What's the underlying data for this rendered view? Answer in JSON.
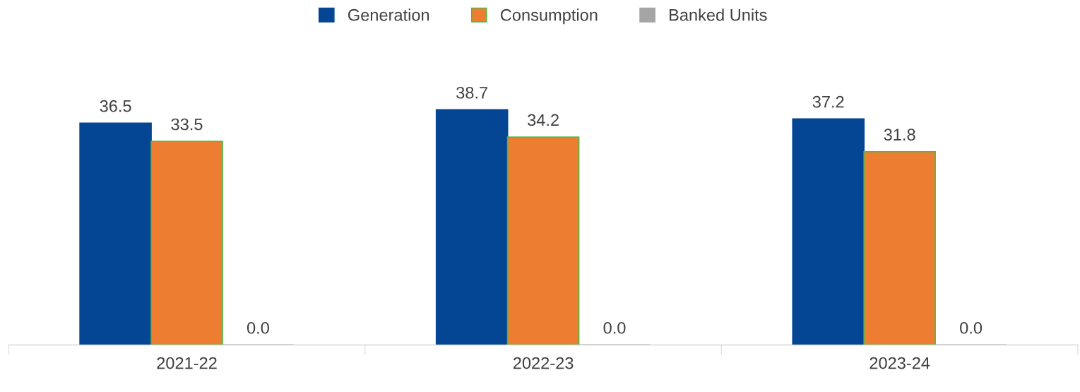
{
  "chart_data": {
    "type": "bar",
    "categories": [
      "2021-22",
      "2022-23",
      "2023-24"
    ],
    "series": [
      {
        "name": "Generation",
        "color": "#044694",
        "values": [
          36.5,
          38.7,
          37.2
        ],
        "value_labels": [
          "36.5",
          "38.7",
          "37.2"
        ]
      },
      {
        "name": "Consumption",
        "color": "#ed7d31",
        "values": [
          33.5,
          34.2,
          31.8
        ],
        "value_labels": [
          "33.5",
          "34.2",
          "31.8"
        ]
      },
      {
        "name": "Banked Units",
        "color": "#a5a5a5",
        "values": [
          0.0,
          0.0,
          0.0
        ],
        "value_labels": [
          "0.0",
          "0.0",
          "0.0"
        ]
      }
    ],
    "legend": "top",
    "grid": false
  }
}
